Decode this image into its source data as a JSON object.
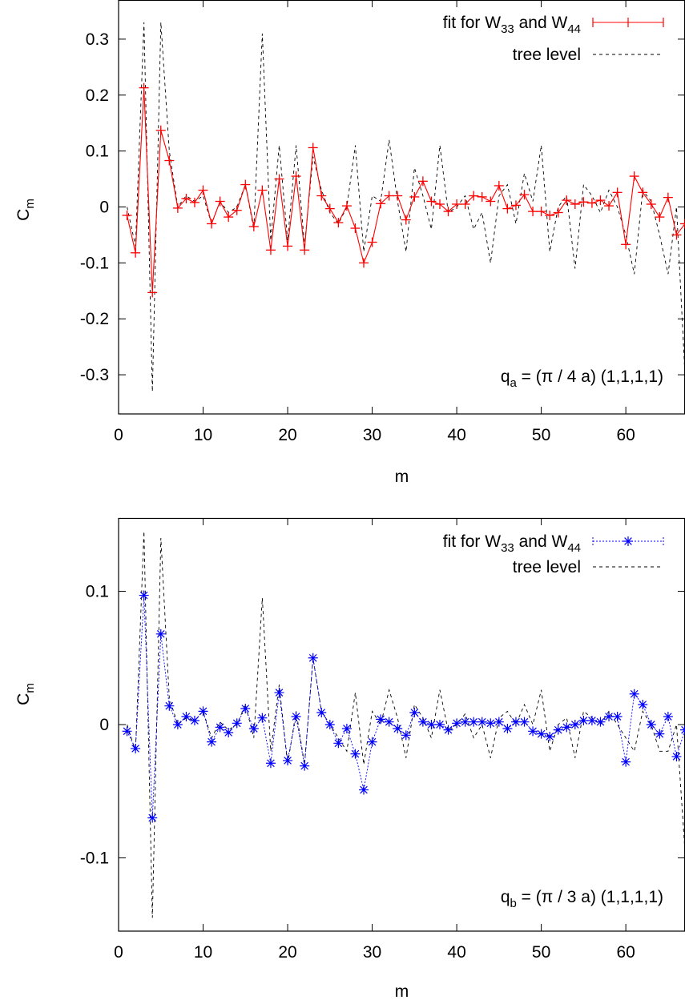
{
  "chart_data": [
    {
      "type": "line",
      "xlabel": "m",
      "ylabel": "C",
      "ylabel_sub": "m",
      "xlim": [
        0,
        67
      ],
      "ylim": [
        -0.37,
        0.37
      ],
      "xticks": [
        0,
        10,
        20,
        30,
        40,
        50,
        60
      ],
      "yticks": [
        -0.3,
        -0.2,
        -0.1,
        0,
        0.1,
        0.2,
        0.3
      ],
      "ytick_labels": [
        "-0.3",
        "-0.2",
        "-0.1",
        "0",
        "0.1",
        "0.2",
        "0.3"
      ],
      "annotation": {
        "pre": "q",
        "sub": "a",
        "post": " = (π / 4 a)  (1,1,1,1)"
      },
      "legend_position": "top-right",
      "series": [
        {
          "name": {
            "pre": "fit for W",
            "sub1": "33",
            "mid": " and W",
            "sub2": "44"
          },
          "style": "solid-errorbar",
          "color": "#ff0000",
          "x": [
            1,
            2,
            3,
            4,
            5,
            6,
            7,
            8,
            9,
            10,
            11,
            12,
            13,
            14,
            15,
            16,
            17,
            18,
            19,
            20,
            21,
            22,
            23,
            24,
            25,
            26,
            27,
            28,
            29,
            30,
            31,
            32,
            33,
            34,
            35,
            36,
            37,
            38,
            39,
            40,
            41,
            42,
            43,
            44,
            45,
            46,
            47,
            48,
            49,
            50,
            51,
            52,
            53,
            54,
            55,
            56,
            57,
            58,
            59,
            60,
            61,
            62,
            63,
            64,
            65,
            66,
            67
          ],
          "y": [
            -0.015,
            -0.082,
            0.213,
            -0.153,
            0.137,
            0.083,
            -0.002,
            0.015,
            0.008,
            0.03,
            -0.03,
            0.01,
            -0.018,
            -0.006,
            0.04,
            -0.035,
            0.03,
            -0.077,
            0.05,
            -0.07,
            0.055,
            -0.077,
            0.106,
            0.02,
            -0.003,
            -0.028,
            0.002,
            -0.038,
            -0.1,
            -0.063,
            0.006,
            0.02,
            0.02,
            -0.023,
            0.018,
            0.046,
            0.01,
            0.005,
            -0.008,
            0.005,
            0.005,
            0.02,
            0.018,
            0.01,
            0.038,
            -0.003,
            0.003,
            0.022,
            -0.008,
            -0.008,
            -0.015,
            -0.01,
            0.012,
            0.005,
            0.009,
            0.007,
            0.012,
            0.002,
            0.026,
            -0.067,
            0.055,
            0.026,
            0.005,
            -0.018,
            0.017,
            -0.05,
            -0.03
          ]
        },
        {
          "name": "tree level",
          "style": "dashed",
          "color": "#000000",
          "x": [
            1,
            2,
            3,
            4,
            5,
            6,
            7,
            8,
            9,
            10,
            11,
            12,
            13,
            14,
            15,
            16,
            17,
            18,
            19,
            20,
            21,
            22,
            23,
            24,
            25,
            26,
            27,
            28,
            29,
            30,
            31,
            32,
            33,
            34,
            35,
            36,
            37,
            38,
            39,
            40,
            41,
            42,
            43,
            44,
            45,
            46,
            47,
            48,
            49,
            50,
            51,
            52,
            53,
            54,
            55,
            56,
            57,
            58,
            59,
            60,
            61,
            62,
            63,
            64,
            65,
            66,
            67
          ],
          "y": [
            0,
            -0.07,
            0.33,
            -0.33,
            0.33,
            0.1,
            0,
            0.02,
            0.01,
            0.02,
            -0.03,
            0.01,
            -0.01,
            0,
            0.04,
            -0.04,
            0.31,
            -0.06,
            0.11,
            -0.06,
            0.11,
            -0.07,
            0.09,
            0.03,
            -0.01,
            -0.03,
            0,
            0.11,
            -0.08,
            0.02,
            0.01,
            0.12,
            0.01,
            -0.08,
            0.07,
            0.02,
            -0.04,
            0.11,
            -0.01,
            0,
            0.02,
            -0.04,
            -0.01,
            -0.1,
            0.02,
            0.04,
            -0.03,
            0.06,
            0.01,
            0.11,
            -0.08,
            0,
            0.02,
            -0.11,
            0.04,
            0.02,
            -0.01,
            0.03,
            0,
            -0.05,
            -0.12,
            0.03,
            0.01,
            -0.05,
            -0.12,
            0,
            -0.3
          ]
        }
      ]
    },
    {
      "type": "line",
      "xlabel": "m",
      "ylabel": "C",
      "ylabel_sub": "m",
      "xlim": [
        0,
        67
      ],
      "ylim": [
        -0.155,
        0.155
      ],
      "xticks": [
        0,
        10,
        20,
        30,
        40,
        50,
        60
      ],
      "yticks": [
        -0.1,
        0,
        0.1
      ],
      "ytick_labels": [
        "-0.1",
        "0",
        "0.1"
      ],
      "annotation": {
        "pre": "q",
        "sub": "b",
        "post": " = (π / 3 a)  (1,1,1,1)"
      },
      "legend_position": "top-right",
      "series": [
        {
          "name": {
            "pre": "fit for W",
            "sub1": "33",
            "mid": " and W",
            "sub2": "44"
          },
          "style": "dotted-star",
          "color": "#0000ff",
          "x": [
            1,
            2,
            3,
            4,
            5,
            6,
            7,
            8,
            9,
            10,
            11,
            12,
            13,
            14,
            15,
            16,
            17,
            18,
            19,
            20,
            21,
            22,
            23,
            24,
            25,
            26,
            27,
            28,
            29,
            30,
            31,
            32,
            33,
            34,
            35,
            36,
            37,
            38,
            39,
            40,
            41,
            42,
            43,
            44,
            45,
            46,
            47,
            48,
            49,
            50,
            51,
            52,
            53,
            54,
            55,
            56,
            57,
            58,
            59,
            60,
            61,
            62,
            63,
            64,
            65,
            66,
            67
          ],
          "y": [
            -0.005,
            -0.018,
            0.097,
            -0.07,
            0.068,
            0.014,
            0.0,
            0.006,
            0.003,
            0.01,
            -0.013,
            -0.002,
            -0.006,
            0.001,
            0.012,
            -0.003,
            0.005,
            -0.029,
            0.024,
            -0.027,
            0.006,
            -0.031,
            0.05,
            0.009,
            0.0,
            -0.014,
            -0.003,
            -0.022,
            -0.049,
            -0.013,
            0.004,
            0.002,
            -0.003,
            -0.008,
            0.009,
            0.002,
            0.0,
            0.0,
            -0.004,
            0.001,
            0.002,
            0.002,
            0.002,
            0.001,
            0.002,
            -0.003,
            0.002,
            0.002,
            -0.005,
            -0.007,
            -0.009,
            -0.004,
            -0.002,
            0.0,
            0.003,
            0.003,
            0.002,
            0.006,
            0.006,
            -0.028,
            0.023,
            0.015,
            0.0,
            -0.007,
            0.006,
            -0.024,
            -0.004
          ]
        },
        {
          "name": "tree level",
          "style": "dashed",
          "color": "#000000",
          "x": [
            1,
            2,
            3,
            4,
            5,
            6,
            7,
            8,
            9,
            10,
            11,
            12,
            13,
            14,
            15,
            16,
            17,
            18,
            19,
            20,
            21,
            22,
            23,
            24,
            25,
            26,
            27,
            28,
            29,
            30,
            31,
            32,
            33,
            34,
            35,
            36,
            37,
            38,
            39,
            40,
            41,
            42,
            43,
            44,
            45,
            46,
            47,
            48,
            49,
            50,
            51,
            52,
            53,
            54,
            55,
            56,
            57,
            58,
            59,
            60,
            61,
            62,
            63,
            64,
            65,
            66,
            67
          ],
          "y": [
            0,
            -0.02,
            0.145,
            -0.145,
            0.14,
            0.02,
            0,
            0.005,
            0.003,
            0.01,
            -0.01,
            0.002,
            -0.004,
            0,
            0.015,
            -0.01,
            0.095,
            -0.02,
            0.03,
            -0.03,
            0.01,
            -0.03,
            0.05,
            0.01,
            0,
            -0.01,
            -0.02,
            0.024,
            -0.03,
            0.01,
            0,
            0.026,
            0.005,
            -0.025,
            0.015,
            0.005,
            -0.01,
            0.026,
            -0.005,
            0,
            0.008,
            -0.01,
            0,
            -0.025,
            0.005,
            0.01,
            0,
            0.015,
            0,
            0.026,
            -0.02,
            0,
            0.005,
            -0.025,
            0.01,
            0.005,
            0,
            0.01,
            0,
            -0.01,
            -0.02,
            0.01,
            0,
            -0.02,
            -0.02,
            0,
            -0.095
          ]
        }
      ]
    }
  ]
}
